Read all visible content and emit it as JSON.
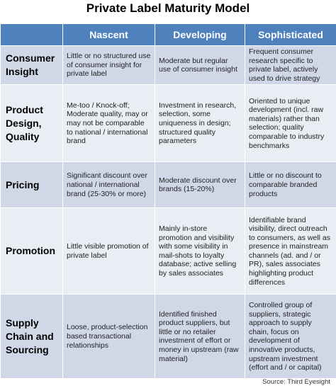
{
  "header": {
    "title": "Private Label Maturity Model"
  },
  "table": {
    "columns": [
      "",
      "Nascent",
      "Developing",
      "Sophisticated"
    ],
    "rows": [
      [
        "Consumer Insight",
        "Little or no structured use of consumer insight for private label",
        "Moderate but regular use of consumer insight",
        "Frequent consumer research specific to private label, actively used to drive strategy"
      ],
      [
        "Product Design, Quality",
        "Me-too / Knock-off; Moderate quality, may or may not be comparable to national / international brand",
        "Investment in research, selection, some uniqueness in design; structured quality parameters",
        "Oriented to unique development (incl. raw materials) rather than selection; quality comparable to industry benchmarks"
      ],
      [
        "Pricing",
        "Significant discount over national / international brand (25-30% or more)",
        "Moderate discount over brands (15-20%)",
        "Little or no discount to comparable branded products"
      ],
      [
        "Promotion",
        "Little visible promotion of private label",
        "Mainly in-store promotion and visibility with some visibility in mail-shots to loyalty database; active selling by sales associates",
        "Identifiable brand visibility, direct outreach to consumers, as well as presence in mainstream channels (ad. and / or PR), sales associates highlighting product differences"
      ],
      [
        "Supply Chain and Sourcing",
        "Loose, product-selection based transactional relationships",
        "Identified finished product suppliers, but little or no retailer investment of effort or money in upstream (raw material)",
        "Controlled group of suppliers, strategic approach to supply chain, focus on development of innovative products, upstream investment (effort and / or capital)"
      ]
    ]
  },
  "source": "Source: Third Eyesight"
}
